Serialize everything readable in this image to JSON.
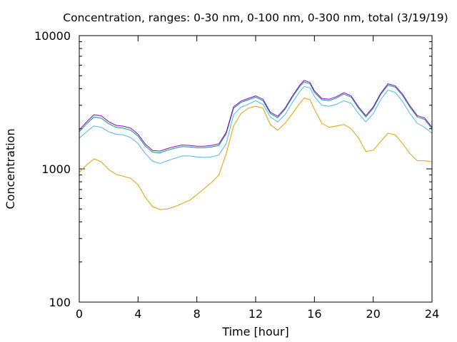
{
  "chart_data": {
    "type": "line",
    "title": "Concentration, ranges: 0-30 nm, 0-100 nm, 0-300 nm, total (3/19/19)",
    "xlabel": "Time [hour]",
    "ylabel": "Concentration",
    "xlim": [
      0,
      24
    ],
    "ylim": [
      100,
      10000
    ],
    "yscale": "log",
    "grid": false,
    "legend": "none",
    "x_ticks": [
      0,
      4,
      8,
      12,
      16,
      20,
      24
    ],
    "x_tick_labels": [
      "0",
      "4",
      "8",
      "12",
      "16",
      "20",
      "24"
    ],
    "y_ticks": [
      100,
      1000,
      10000
    ],
    "y_tick_labels": [
      "100",
      "1000",
      "10000"
    ],
    "y_minor_ticks": [
      200,
      300,
      400,
      500,
      600,
      700,
      800,
      900,
      2000,
      3000,
      4000,
      5000,
      6000,
      7000,
      8000,
      9000
    ],
    "series": [
      {
        "color": "#e69f00",
        "points": [
          [
            0,
            940
          ],
          [
            0.5,
            1070
          ],
          [
            1,
            1190
          ],
          [
            1.5,
            1130
          ],
          [
            2,
            990
          ],
          [
            2.5,
            910
          ],
          [
            3,
            880
          ],
          [
            3.5,
            850
          ],
          [
            4,
            760
          ],
          [
            4.5,
            610
          ],
          [
            5,
            520
          ],
          [
            5.5,
            495
          ],
          [
            6,
            500
          ],
          [
            6.5,
            520
          ],
          [
            7,
            550
          ],
          [
            7.5,
            580
          ],
          [
            8,
            640
          ],
          [
            8.5,
            710
          ],
          [
            9,
            790
          ],
          [
            9.5,
            900
          ],
          [
            10,
            1300
          ],
          [
            10.5,
            2100
          ],
          [
            11,
            2600
          ],
          [
            11.5,
            2850
          ],
          [
            12,
            2950
          ],
          [
            12.5,
            2850
          ],
          [
            13,
            2150
          ],
          [
            13.5,
            1950
          ],
          [
            14,
            2200
          ],
          [
            14.5,
            2600
          ],
          [
            15,
            3100
          ],
          [
            15.3,
            3400
          ],
          [
            15.7,
            3300
          ],
          [
            16,
            2800
          ],
          [
            16.5,
            2200
          ],
          [
            17,
            2050
          ],
          [
            17.5,
            2100
          ],
          [
            18,
            2150
          ],
          [
            18.5,
            2000
          ],
          [
            19,
            1700
          ],
          [
            19.5,
            1350
          ],
          [
            20,
            1380
          ],
          [
            20.5,
            1600
          ],
          [
            21,
            1850
          ],
          [
            21.5,
            1800
          ],
          [
            22,
            1550
          ],
          [
            22.5,
            1300
          ],
          [
            23,
            1150
          ],
          [
            23.5,
            1150
          ],
          [
            24,
            1130
          ]
        ]
      },
      {
        "color": "#56b4e9",
        "points": [
          [
            0,
            1700
          ],
          [
            0.5,
            1900
          ],
          [
            1,
            2100
          ],
          [
            1.5,
            2050
          ],
          [
            2,
            1900
          ],
          [
            2.5,
            1820
          ],
          [
            3,
            1800
          ],
          [
            3.5,
            1720
          ],
          [
            4,
            1550
          ],
          [
            4.5,
            1300
          ],
          [
            5,
            1140
          ],
          [
            5.5,
            1100
          ],
          [
            6,
            1150
          ],
          [
            6.5,
            1200
          ],
          [
            7,
            1250
          ],
          [
            7.5,
            1250
          ],
          [
            8,
            1230
          ],
          [
            8.5,
            1220
          ],
          [
            9,
            1230
          ],
          [
            9.5,
            1270
          ],
          [
            10,
            1550
          ],
          [
            10.5,
            2550
          ],
          [
            11,
            2900
          ],
          [
            11.5,
            3050
          ],
          [
            12,
            3250
          ],
          [
            12.5,
            3050
          ],
          [
            13,
            2450
          ],
          [
            13.5,
            2250
          ],
          [
            14,
            2550
          ],
          [
            14.5,
            3150
          ],
          [
            15,
            3800
          ],
          [
            15.3,
            4150
          ],
          [
            15.7,
            4050
          ],
          [
            16,
            3500
          ],
          [
            16.5,
            3000
          ],
          [
            17,
            2950
          ],
          [
            17.5,
            3050
          ],
          [
            18,
            3250
          ],
          [
            18.5,
            3100
          ],
          [
            19,
            2600
          ],
          [
            19.5,
            2250
          ],
          [
            20,
            2600
          ],
          [
            20.5,
            3300
          ],
          [
            21,
            3900
          ],
          [
            21.5,
            3750
          ],
          [
            22,
            3200
          ],
          [
            22.5,
            2600
          ],
          [
            23,
            2200
          ],
          [
            23.5,
            2050
          ],
          [
            24,
            1850
          ]
        ]
      },
      {
        "color": "#009e73",
        "points": [
          [
            0,
            1900
          ],
          [
            0.5,
            2180
          ],
          [
            1,
            2450
          ],
          [
            1.5,
            2400
          ],
          [
            2,
            2180
          ],
          [
            2.5,
            2050
          ],
          [
            3,
            2020
          ],
          [
            3.5,
            1950
          ],
          [
            4,
            1760
          ],
          [
            4.5,
            1480
          ],
          [
            5,
            1330
          ],
          [
            5.5,
            1320
          ],
          [
            6,
            1380
          ],
          [
            6.5,
            1430
          ],
          [
            7,
            1470
          ],
          [
            7.5,
            1460
          ],
          [
            8,
            1440
          ],
          [
            8.5,
            1440
          ],
          [
            9,
            1460
          ],
          [
            9.5,
            1500
          ],
          [
            10,
            1830
          ],
          [
            10.5,
            2850
          ],
          [
            11,
            3150
          ],
          [
            11.5,
            3300
          ],
          [
            12,
            3450
          ],
          [
            12.5,
            3250
          ],
          [
            13,
            2600
          ],
          [
            13.5,
            2420
          ],
          [
            14,
            2800
          ],
          [
            14.5,
            3450
          ],
          [
            15,
            4150
          ],
          [
            15.3,
            4500
          ],
          [
            15.7,
            4350
          ],
          [
            16,
            3750
          ],
          [
            16.5,
            3300
          ],
          [
            17,
            3250
          ],
          [
            17.5,
            3400
          ],
          [
            18,
            3650
          ],
          [
            18.5,
            3450
          ],
          [
            19,
            2850
          ],
          [
            19.5,
            2450
          ],
          [
            20,
            2850
          ],
          [
            20.5,
            3600
          ],
          [
            21,
            4250
          ],
          [
            21.5,
            4100
          ],
          [
            22,
            3550
          ],
          [
            22.5,
            2900
          ],
          [
            23,
            2450
          ],
          [
            23.5,
            2350
          ],
          [
            24,
            2000
          ]
        ]
      },
      {
        "color": "#9400d3",
        "points": [
          [
            0,
            1960
          ],
          [
            0.5,
            2250
          ],
          [
            1,
            2550
          ],
          [
            1.5,
            2500
          ],
          [
            2,
            2260
          ],
          [
            2.5,
            2120
          ],
          [
            3,
            2090
          ],
          [
            3.5,
            2020
          ],
          [
            4,
            1820
          ],
          [
            4.5,
            1530
          ],
          [
            5,
            1370
          ],
          [
            5.5,
            1360
          ],
          [
            6,
            1420
          ],
          [
            6.5,
            1470
          ],
          [
            7,
            1510
          ],
          [
            7.5,
            1500
          ],
          [
            8,
            1480
          ],
          [
            8.5,
            1480
          ],
          [
            9,
            1500
          ],
          [
            9.5,
            1540
          ],
          [
            10,
            1880
          ],
          [
            10.5,
            2920
          ],
          [
            11,
            3220
          ],
          [
            11.5,
            3380
          ],
          [
            12,
            3530
          ],
          [
            12.5,
            3330
          ],
          [
            13,
            2660
          ],
          [
            13.5,
            2480
          ],
          [
            14,
            2860
          ],
          [
            14.5,
            3530
          ],
          [
            15,
            4250
          ],
          [
            15.3,
            4620
          ],
          [
            15.7,
            4450
          ],
          [
            16,
            3850
          ],
          [
            16.5,
            3380
          ],
          [
            17,
            3330
          ],
          [
            17.5,
            3480
          ],
          [
            18,
            3730
          ],
          [
            18.5,
            3530
          ],
          [
            19,
            2920
          ],
          [
            19.5,
            2510
          ],
          [
            20,
            2920
          ],
          [
            20.5,
            3680
          ],
          [
            21,
            4350
          ],
          [
            21.5,
            4200
          ],
          [
            22,
            3640
          ],
          [
            22.5,
            2970
          ],
          [
            23,
            2510
          ],
          [
            23.5,
            2410
          ],
          [
            24,
            2050
          ]
        ]
      }
    ]
  }
}
